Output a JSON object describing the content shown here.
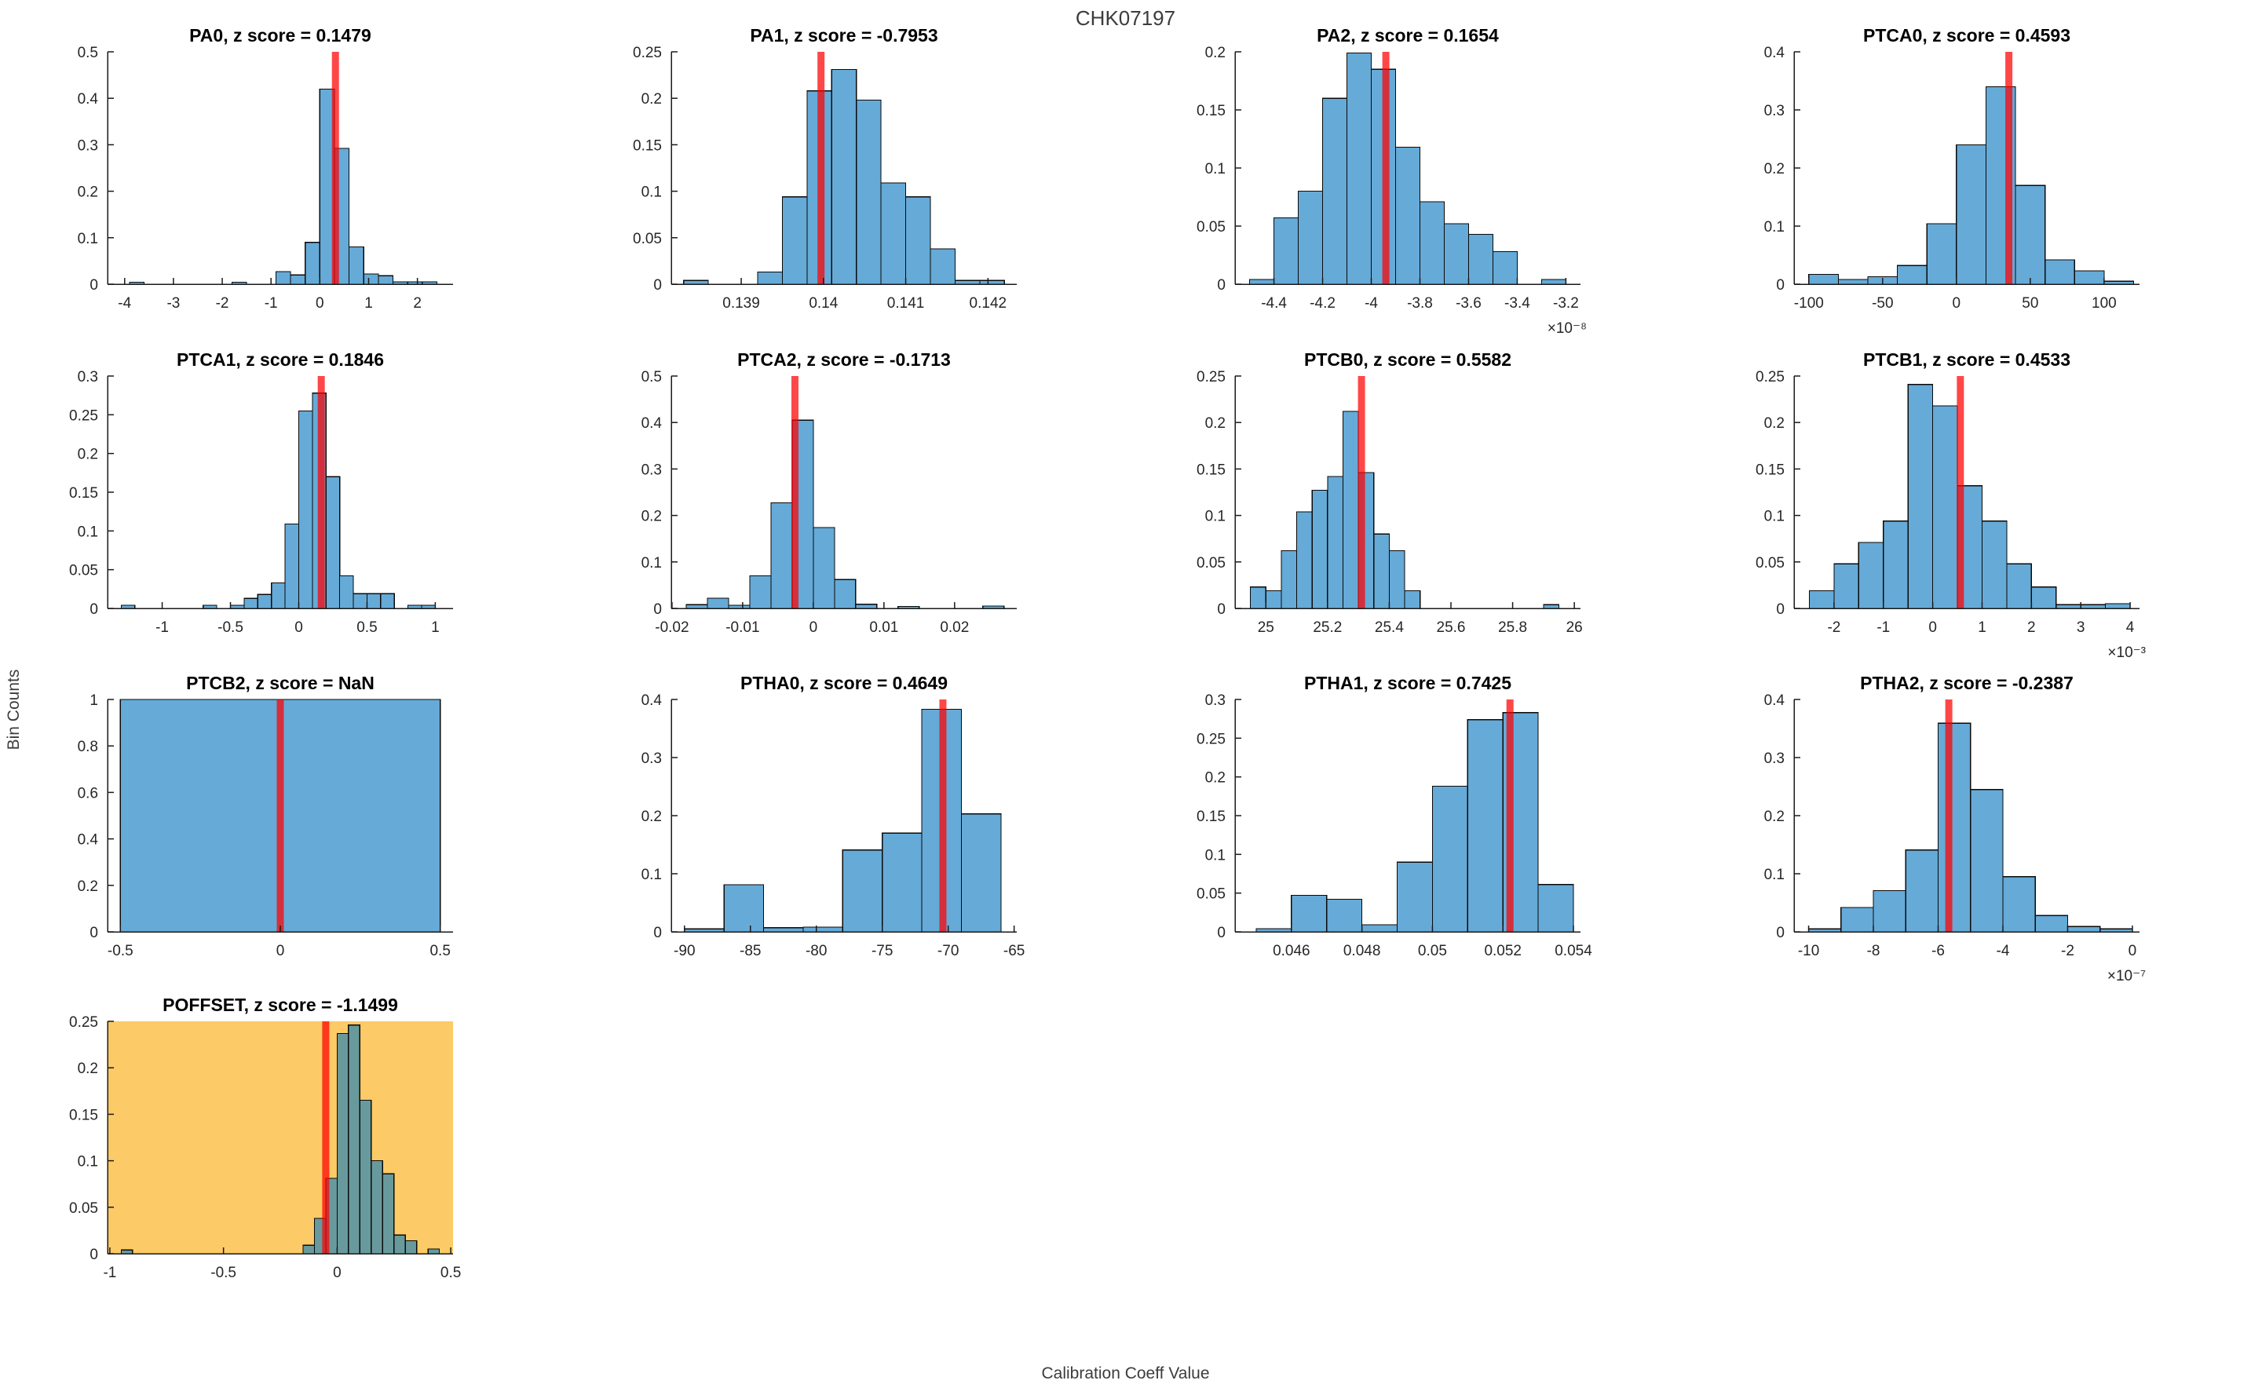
{
  "figure": {
    "title": "CHK07197",
    "xlabel": "Calibration Coeff Value",
    "ylabel": "Bin Counts"
  },
  "colors": {
    "bar_fill": "#66AAD7",
    "bar_edge": "#0a0a0a",
    "marker_red": "rgba(255,0,0,0.72)",
    "axis": "#1a1a1a",
    "highlight_bg": "#FCCA66",
    "highlight_bar_fill": "#689A9D"
  },
  "chart_data": [
    {
      "name": "PA0",
      "type": "histogram",
      "title": "PA0, z score = 0.1479",
      "z_score": 0.1479,
      "xlim": [
        -4.35,
        2.73
      ],
      "ylim": [
        0,
        0.5
      ],
      "xticks": [
        -4,
        -3,
        -2,
        -1,
        0,
        1,
        2
      ],
      "xtick_labels": [
        "-4",
        "-3",
        "-2",
        "-1",
        "0",
        "1",
        "2"
      ],
      "yticks": [
        0,
        0.1,
        0.2,
        0.3,
        0.4,
        0.5
      ],
      "ytick_labels": [
        "0",
        "0.1",
        "0.2",
        "0.3",
        "0.4",
        "0.5"
      ],
      "bin_width": 0.3,
      "bins": [
        [
          -3.9,
          0.004
        ],
        [
          -1.8,
          0.004
        ],
        [
          -0.9,
          0.027
        ],
        [
          -0.6,
          0.02
        ],
        [
          -0.3,
          0.09
        ],
        [
          0,
          0.42
        ],
        [
          0.3,
          0.292
        ],
        [
          0.6,
          0.08
        ],
        [
          0.9,
          0.022
        ],
        [
          1.2,
          0.018
        ],
        [
          1.5,
          0.005
        ],
        [
          1.8,
          0.005
        ],
        [
          2.1,
          0.005
        ]
      ],
      "marker_x": 0.32,
      "exponent": null,
      "highlight": false
    },
    {
      "name": "PA1",
      "type": "histogram",
      "title": "PA1, z score = -0.7953",
      "z_score": -0.7953,
      "xlim": [
        0.13815,
        0.14235
      ],
      "ylim": [
        0,
        0.25
      ],
      "xticks": [
        0.139,
        0.14,
        0.141,
        0.142
      ],
      "xtick_labels": [
        "0.139",
        "0.14",
        "0.141",
        "0.142"
      ],
      "yticks": [
        0,
        0.05,
        0.1,
        0.15,
        0.2,
        0.25
      ],
      "ytick_labels": [
        "0",
        "0.05",
        "0.1",
        "0.15",
        "0.2",
        "0.25"
      ],
      "bin_width": 0.0003,
      "bins": [
        [
          0.1383,
          0.004
        ],
        [
          0.1392,
          0.013
        ],
        [
          0.1395,
          0.094
        ],
        [
          0.1398,
          0.208
        ],
        [
          0.1401,
          0.231
        ],
        [
          0.1404,
          0.198
        ],
        [
          0.1407,
          0.109
        ],
        [
          0.141,
          0.094
        ],
        [
          0.1413,
          0.038
        ],
        [
          0.1416,
          0.004
        ],
        [
          0.1419,
          0.004
        ]
      ],
      "marker_x": 0.13997,
      "exponent": null,
      "highlight": false
    },
    {
      "name": "PA2",
      "type": "histogram",
      "title": "PA2, z score = 0.1654",
      "z_score": 0.1654,
      "xlim": [
        -4.56,
        -3.14
      ],
      "ylim": [
        0,
        0.2
      ],
      "xticks": [
        -4.4,
        -4.2,
        -4,
        -3.8,
        -3.6,
        -3.4,
        -3.2
      ],
      "xtick_labels": [
        "-4.4",
        "-4.2",
        "-4",
        "-3.8",
        "-3.6",
        "-3.4",
        "-3.2"
      ],
      "yticks": [
        0,
        0.05,
        0.1,
        0.15,
        0.2
      ],
      "ytick_labels": [
        "0",
        "0.05",
        "0.1",
        "0.15",
        "0.2"
      ],
      "bin_width": 0.1,
      "bins": [
        [
          -4.5,
          0.004
        ],
        [
          -4.4,
          0.057
        ],
        [
          -4.3,
          0.08
        ],
        [
          -4.2,
          0.16
        ],
        [
          -4.1,
          0.199
        ],
        [
          -4.0,
          0.185
        ],
        [
          -3.9,
          0.118
        ],
        [
          -3.8,
          0.071
        ],
        [
          -3.7,
          0.052
        ],
        [
          -3.6,
          0.043
        ],
        [
          -3.5,
          0.028
        ],
        [
          -3.3,
          0.004
        ]
      ],
      "marker_x": -3.94,
      "exponent": "×10⁻⁸",
      "highlight": false
    },
    {
      "name": "PTCA0",
      "type": "histogram",
      "title": "PTCA0, z score = 0.4593",
      "z_score": 0.4593,
      "xlim": [
        -110,
        124
      ],
      "ylim": [
        0,
        0.4
      ],
      "xticks": [
        -100,
        -50,
        0,
        50,
        100
      ],
      "xtick_labels": [
        "-100",
        "-50",
        "0",
        "50",
        "100"
      ],
      "yticks": [
        0,
        0.1,
        0.2,
        0.3,
        0.4
      ],
      "ytick_labels": [
        "0",
        "0.1",
        "0.2",
        "0.3",
        "0.4"
      ],
      "bin_width": 20,
      "bins": [
        [
          -100,
          0.017
        ],
        [
          -80,
          0.008
        ],
        [
          -60,
          0.013
        ],
        [
          -40,
          0.032
        ],
        [
          -20,
          0.104
        ],
        [
          0,
          0.24
        ],
        [
          20,
          0.34
        ],
        [
          40,
          0.17
        ],
        [
          60,
          0.042
        ],
        [
          80,
          0.023
        ],
        [
          100,
          0.005
        ]
      ],
      "marker_x": 35.5,
      "exponent": null,
      "highlight": false
    },
    {
      "name": "PTCA1",
      "type": "histogram",
      "title": "PTCA1, z score = 0.1846",
      "z_score": 0.1846,
      "xlim": [
        -1.4,
        1.13
      ],
      "ylim": [
        0,
        0.3
      ],
      "xticks": [
        -1,
        -0.5,
        0,
        0.5,
        1
      ],
      "xtick_labels": [
        "-1",
        "-0.5",
        "0",
        "0.5",
        "1"
      ],
      "yticks": [
        0,
        0.05,
        0.1,
        0.15,
        0.2,
        0.25,
        0.3
      ],
      "ytick_labels": [
        "0",
        "0.05",
        "0.1",
        "0.15",
        "0.2",
        "0.25",
        "0.3"
      ],
      "bin_width": 0.1,
      "bins": [
        [
          -1.3,
          0.004
        ],
        [
          -0.7,
          0.004
        ],
        [
          -0.5,
          0.004
        ],
        [
          -0.4,
          0.013
        ],
        [
          -0.3,
          0.018
        ],
        [
          -0.2,
          0.033
        ],
        [
          -0.1,
          0.109
        ],
        [
          0,
          0.255
        ],
        [
          0.1,
          0.278
        ],
        [
          0.2,
          0.17
        ],
        [
          0.3,
          0.042
        ],
        [
          0.4,
          0.019
        ],
        [
          0.5,
          0.019
        ],
        [
          0.6,
          0.019
        ],
        [
          0.8,
          0.004
        ],
        [
          0.9,
          0.004
        ]
      ],
      "marker_x": 0.165,
      "exponent": null,
      "highlight": false
    },
    {
      "name": "PTCA2",
      "type": "histogram",
      "title": "PTCA2, z score = -0.1713",
      "z_score": -0.1713,
      "xlim": [
        -0.0201,
        0.0288
      ],
      "ylim": [
        0,
        0.5
      ],
      "xticks": [
        -0.02,
        -0.01,
        0,
        0.01,
        0.02
      ],
      "xtick_labels": [
        "-0.02",
        "-0.01",
        "0",
        "0.01",
        "0.02"
      ],
      "yticks": [
        0,
        0.1,
        0.2,
        0.3,
        0.4,
        0.5
      ],
      "ytick_labels": [
        "0",
        "0.1",
        "0.2",
        "0.3",
        "0.4",
        "0.5"
      ],
      "bin_width": 0.003,
      "bins": [
        [
          -0.018,
          0.008
        ],
        [
          -0.015,
          0.022
        ],
        [
          -0.012,
          0.007
        ],
        [
          -0.009,
          0.07
        ],
        [
          -0.006,
          0.227
        ],
        [
          -0.003,
          0.405
        ],
        [
          0,
          0.174
        ],
        [
          0.003,
          0.062
        ],
        [
          0.006,
          0.009
        ],
        [
          0.012,
          0.004
        ],
        [
          0.024,
          0.005
        ]
      ],
      "marker_x": -0.0026,
      "exponent": null,
      "highlight": false
    },
    {
      "name": "PTCB0",
      "type": "histogram",
      "title": "PTCB0, z score = 0.5582",
      "z_score": 0.5582,
      "xlim": [
        24.9,
        26.02
      ],
      "ylim": [
        0,
        0.25
      ],
      "xticks": [
        25,
        25.2,
        25.4,
        25.6,
        25.8,
        26
      ],
      "xtick_labels": [
        "25",
        "25.2",
        "25.4",
        "25.6",
        "25.8",
        "26"
      ],
      "yticks": [
        0,
        0.05,
        0.1,
        0.15,
        0.2,
        0.25
      ],
      "ytick_labels": [
        "0",
        "0.05",
        "0.1",
        "0.15",
        "0.2",
        "0.25"
      ],
      "bin_width": 0.05,
      "bins": [
        [
          24.95,
          0.023
        ],
        [
          25.0,
          0.019
        ],
        [
          25.05,
          0.062
        ],
        [
          25.1,
          0.104
        ],
        [
          25.15,
          0.127
        ],
        [
          25.2,
          0.142
        ],
        [
          25.25,
          0.212
        ],
        [
          25.3,
          0.146
        ],
        [
          25.35,
          0.08
        ],
        [
          25.4,
          0.062
        ],
        [
          25.45,
          0.019
        ],
        [
          25.9,
          0.004
        ]
      ],
      "marker_x": 25.31,
      "exponent": null,
      "highlight": false
    },
    {
      "name": "PTCB1",
      "type": "histogram",
      "title": "PTCB1, z score = 0.4533",
      "z_score": 0.4533,
      "xlim": [
        -2.81,
        4.19
      ],
      "ylim": [
        0,
        0.25
      ],
      "xticks": [
        -2,
        -1,
        0,
        1,
        2,
        3,
        4
      ],
      "xtick_labels": [
        "-2",
        "-1",
        "0",
        "1",
        "2",
        "3",
        "4"
      ],
      "yticks": [
        0,
        0.05,
        0.1,
        0.15,
        0.2,
        0.25
      ],
      "ytick_labels": [
        "0",
        "0.05",
        "0.1",
        "0.15",
        "0.2",
        "0.25"
      ],
      "bin_width": 0.5,
      "bins": [
        [
          -2.5,
          0.019
        ],
        [
          -2,
          0.048
        ],
        [
          -1.5,
          0.071
        ],
        [
          -1,
          0.094
        ],
        [
          -0.5,
          0.241
        ],
        [
          0,
          0.218
        ],
        [
          0.5,
          0.132
        ],
        [
          1,
          0.094
        ],
        [
          1.5,
          0.048
        ],
        [
          2,
          0.023
        ],
        [
          2.5,
          0.004
        ],
        [
          3,
          0.004
        ],
        [
          3.5,
          0.005
        ]
      ],
      "marker_x": 0.56,
      "exponent": "×10⁻³",
      "highlight": false
    },
    {
      "name": "PTCB2",
      "type": "histogram",
      "title": "PTCB2, z score = NaN",
      "z_score": null,
      "xlim": [
        -0.54,
        0.54
      ],
      "ylim": [
        0,
        1
      ],
      "xticks": [
        -0.5,
        0,
        0.5
      ],
      "xtick_labels": [
        "-0.5",
        "0",
        "0.5"
      ],
      "yticks": [
        0,
        0.2,
        0.4,
        0.6,
        0.8,
        1
      ],
      "ytick_labels": [
        "0",
        "0.2",
        "0.4",
        "0.6",
        "0.8",
        "1"
      ],
      "bin_width": 1.0,
      "bins": [
        [
          -0.5,
          1.0
        ]
      ],
      "marker_x": 0,
      "exponent": null,
      "highlight": false
    },
    {
      "name": "PTHA0",
      "type": "histogram",
      "title": "PTHA0, z score = 0.4649",
      "z_score": 0.4649,
      "xlim": [
        -91,
        -64.8
      ],
      "ylim": [
        0,
        0.4
      ],
      "xticks": [
        -90,
        -85,
        -80,
        -75,
        -70,
        -65
      ],
      "xtick_labels": [
        "-90",
        "-85",
        "-80",
        "-75",
        "-70",
        "-65"
      ],
      "yticks": [
        0,
        0.1,
        0.2,
        0.3,
        0.4
      ],
      "ytick_labels": [
        "0",
        "0.1",
        "0.2",
        "0.3",
        "0.4"
      ],
      "bin_width": 3,
      "bins": [
        [
          -90,
          0.005
        ],
        [
          -87,
          0.081
        ],
        [
          -84,
          0.007
        ],
        [
          -81,
          0.008
        ],
        [
          -78,
          0.141
        ],
        [
          -75,
          0.17
        ],
        [
          -72,
          0.383
        ],
        [
          -69,
          0.203
        ]
      ],
      "marker_x": -70.4,
      "exponent": null,
      "highlight": false
    },
    {
      "name": "PTHA1",
      "type": "histogram",
      "title": "PTHA1, z score = 0.7425",
      "z_score": 0.7425,
      "xlim": [
        0.0444,
        0.0542
      ],
      "ylim": [
        0,
        0.3
      ],
      "xticks": [
        0.046,
        0.048,
        0.05,
        0.052,
        0.054
      ],
      "xtick_labels": [
        "0.046",
        "0.048",
        "0.05",
        "0.052",
        "0.054"
      ],
      "yticks": [
        0,
        0.05,
        0.1,
        0.15,
        0.2,
        0.25,
        0.3
      ],
      "ytick_labels": [
        "0",
        "0.05",
        "0.1",
        "0.15",
        "0.2",
        "0.25",
        "0.3"
      ],
      "bin_width": 0.001,
      "bins": [
        [
          0.045,
          0.004
        ],
        [
          0.046,
          0.047
        ],
        [
          0.047,
          0.042
        ],
        [
          0.048,
          0.009
        ],
        [
          0.049,
          0.09
        ],
        [
          0.05,
          0.188
        ],
        [
          0.051,
          0.274
        ],
        [
          0.052,
          0.283
        ],
        [
          0.053,
          0.061
        ]
      ],
      "marker_x": 0.0522,
      "exponent": null,
      "highlight": false
    },
    {
      "name": "PTHA2",
      "type": "histogram",
      "title": "PTHA2, z score = -0.2387",
      "z_score": -0.2387,
      "xlim": [
        -10.45,
        0.22
      ],
      "ylim": [
        0,
        0.4
      ],
      "xticks": [
        -10,
        -8,
        -6,
        -4,
        -2,
        0
      ],
      "xtick_labels": [
        "-10",
        "-8",
        "-6",
        "-4",
        "-2",
        "0"
      ],
      "yticks": [
        0,
        0.1,
        0.2,
        0.3,
        0.4
      ],
      "ytick_labels": [
        "0",
        "0.1",
        "0.2",
        "0.3",
        "0.4"
      ],
      "bin_width": 1,
      "bins": [
        [
          -10,
          0.005
        ],
        [
          -9,
          0.042
        ],
        [
          -8,
          0.071
        ],
        [
          -7,
          0.141
        ],
        [
          -6,
          0.359
        ],
        [
          -5,
          0.245
        ],
        [
          -4,
          0.095
        ],
        [
          -3,
          0.028
        ],
        [
          -2,
          0.009
        ],
        [
          -1,
          0.005
        ]
      ],
      "marker_x": -5.67,
      "exponent": "×10⁻⁷",
      "highlight": false
    },
    {
      "name": "POFFSET",
      "type": "histogram",
      "title": "POFFSET, z score = -1.1499",
      "z_score": -1.1499,
      "xlim": [
        -1.01,
        0.51
      ],
      "ylim": [
        0,
        0.25
      ],
      "xticks": [
        -1,
        -0.5,
        0,
        0.5
      ],
      "xtick_labels": [
        "-1",
        "-0.5",
        "0",
        "0.5"
      ],
      "yticks": [
        0,
        0.05,
        0.1,
        0.15,
        0.2,
        0.25
      ],
      "ytick_labels": [
        "0",
        "0.05",
        "0.1",
        "0.15",
        "0.2",
        "0.25"
      ],
      "bin_width": 0.05,
      "bins": [
        [
          -0.95,
          0.004
        ],
        [
          -0.15,
          0.009
        ],
        [
          -0.1,
          0.038
        ],
        [
          -0.05,
          0.081
        ],
        [
          0,
          0.237
        ],
        [
          0.05,
          0.246
        ],
        [
          0.1,
          0.165
        ],
        [
          0.15,
          0.1
        ],
        [
          0.2,
          0.086
        ],
        [
          0.25,
          0.02
        ],
        [
          0.3,
          0.014
        ],
        [
          0.4,
          0.005
        ]
      ],
      "marker_x": -0.05,
      "exponent": null,
      "highlight": true
    }
  ]
}
